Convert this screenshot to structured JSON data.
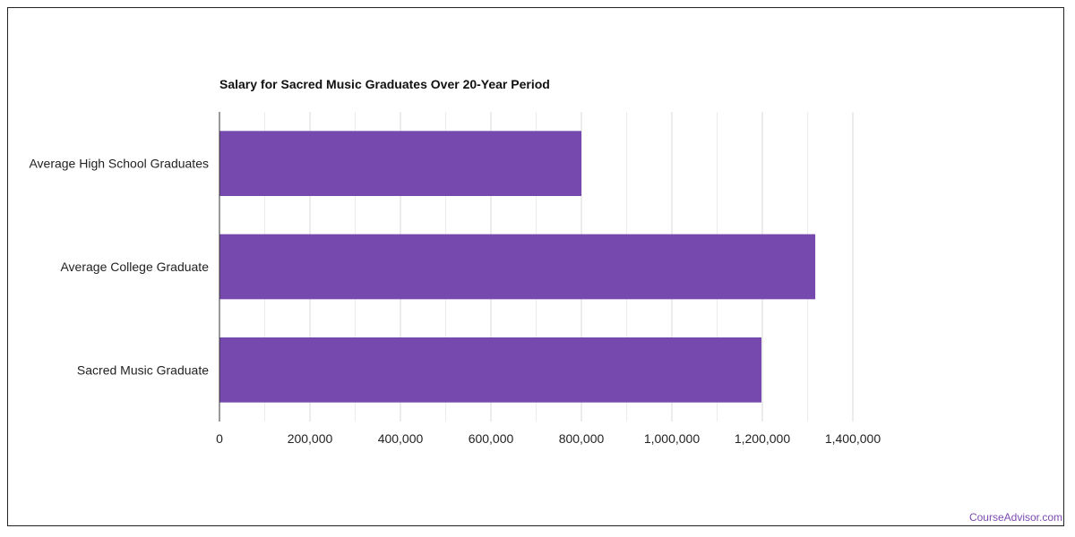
{
  "chart_data": {
    "type": "bar",
    "orientation": "horizontal",
    "title": "Salary for Sacred Music Graduates Over 20-Year Period",
    "xlabel": "",
    "ylabel": "",
    "categories": [
      "Average High School Graduates",
      "Average College Graduate",
      "Sacred Music Graduate"
    ],
    "values": [
      800000,
      1317000,
      1198000
    ],
    "xlim": [
      0,
      1400000
    ],
    "x_ticks": [
      0,
      200000,
      400000,
      600000,
      800000,
      1000000,
      1200000,
      1400000
    ],
    "x_tick_labels": [
      "0",
      "200,000",
      "400,000",
      "600,000",
      "800,000",
      "1,000,000",
      "1,200,000",
      "1,400,000"
    ],
    "grid": true,
    "bar_color": "#7549ad",
    "grid_color": "#d9d9d9"
  },
  "watermark": "CourseAdvisor.com",
  "colors": {
    "accent": "#7549ad",
    "watermark": "#7b4bb0"
  }
}
